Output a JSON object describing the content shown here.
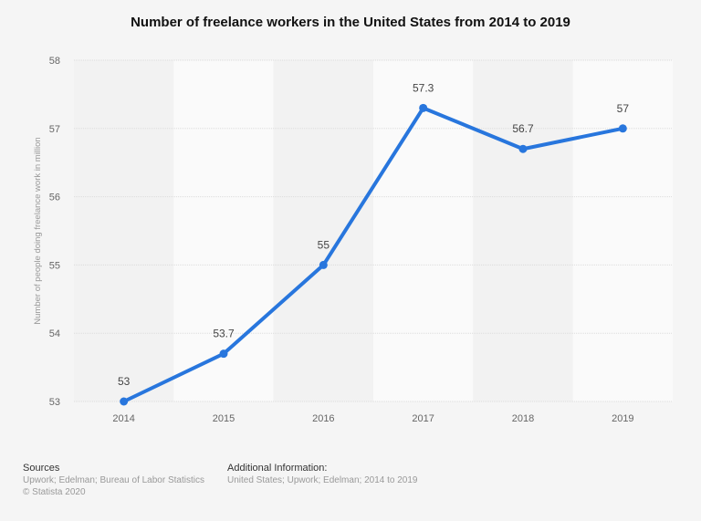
{
  "chart_data": {
    "type": "line",
    "title": "Number of freelance workers in the United States from 2014 to 2019",
    "ylabel": "Number of people doing freelance work in million",
    "xlabel": "",
    "categories": [
      "2014",
      "2015",
      "2016",
      "2017",
      "2018",
      "2019"
    ],
    "values": [
      53,
      53.7,
      55,
      57.3,
      56.7,
      57
    ],
    "data_labels": [
      "53",
      "53.7",
      "55",
      "57.3",
      "56.7",
      "57"
    ],
    "ylim": [
      53,
      58
    ],
    "yticks": [
      "53",
      "54",
      "55",
      "56",
      "57",
      "58"
    ],
    "grid": true,
    "line_color": "#2876dd"
  },
  "footer": {
    "sources_heading": "Sources",
    "sources_text": "Upwork; Edelman; Bureau of Labor Statistics",
    "copyright": "© Statista 2020",
    "additional_heading": "Additional Information:",
    "additional_text": "United States; Upwork; Edelman; 2014 to 2019"
  }
}
